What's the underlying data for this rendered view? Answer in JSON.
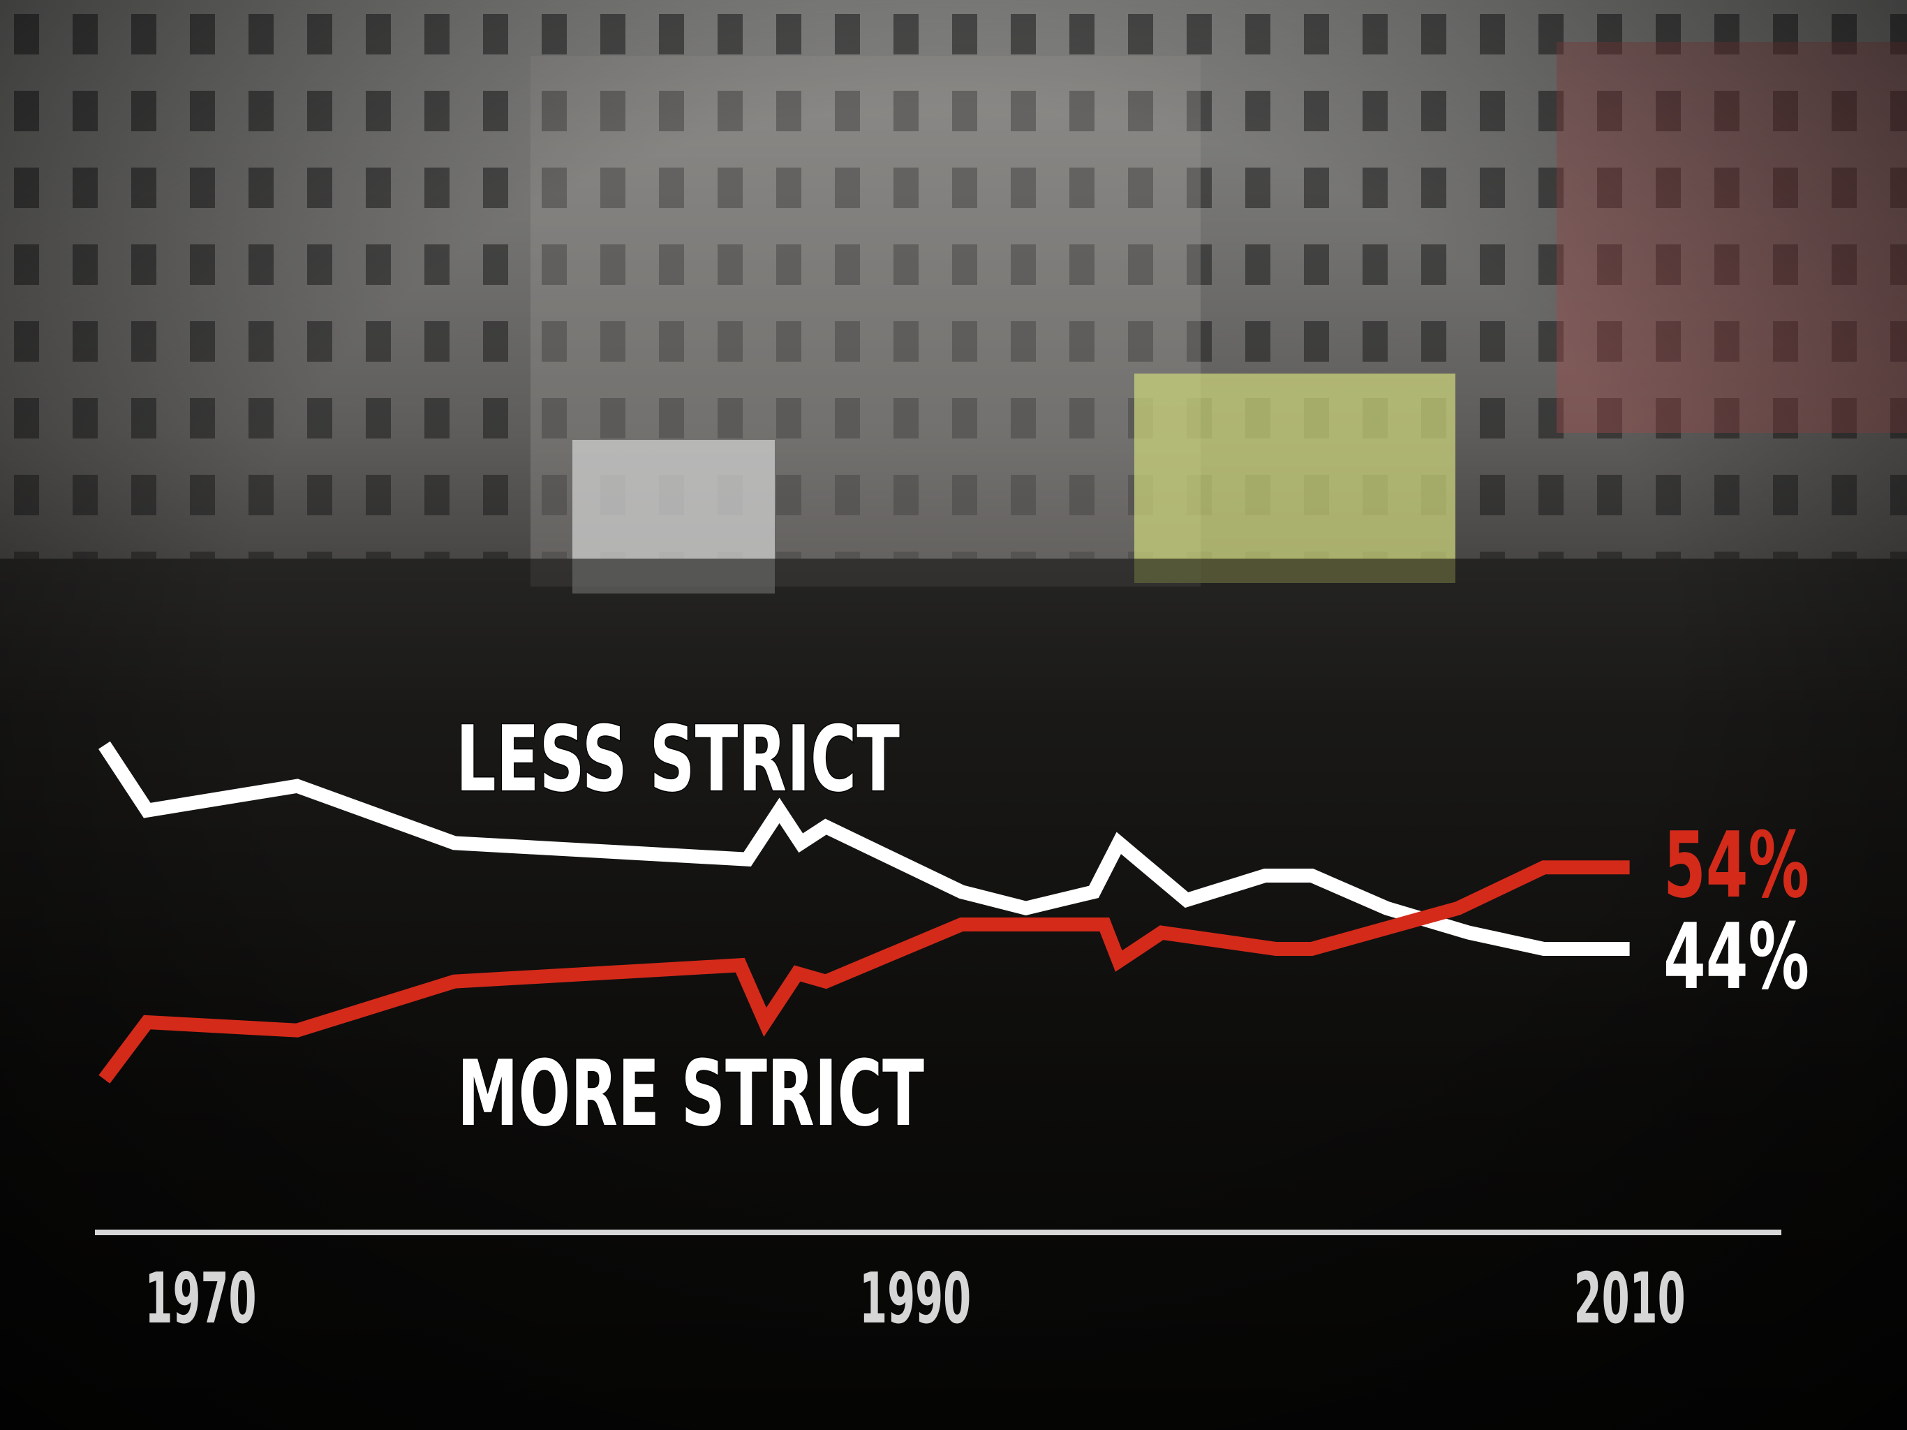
{
  "chart_data": {
    "type": "line",
    "xlim": [
      1967,
      2012
    ],
    "xticks": [
      1970,
      1990,
      2010
    ],
    "ylim": [
      20,
      80
    ],
    "series": [
      {
        "name": "LESS STRICT",
        "color": "#ffffff",
        "x": [
          1967.3,
          1968.5,
          1972.7,
          1977.1,
          1985.3,
          1986.2,
          1986.8,
          1987.5,
          1991.3,
          1993.1,
          1995.0,
          1995.7,
          1997.6,
          1999.8,
          2001.1,
          2003.2,
          2005.5,
          2007.6,
          2010
        ],
        "values": [
          69,
          61,
          64,
          57,
          55,
          61,
          57,
          59,
          51,
          49,
          51,
          57,
          50,
          53,
          53,
          49,
          46,
          44,
          44
        ],
        "value_labels": [
          null,
          null,
          null,
          null,
          null,
          null,
          null,
          null,
          null,
          null,
          null,
          null,
          null,
          null,
          null,
          null,
          null,
          null,
          "44%"
        ]
      },
      {
        "name": "MORE STRICT",
        "color": "#d42a1a",
        "x": [
          1967.3,
          1968.5,
          1972.7,
          1977.1,
          1985.1,
          1985.8,
          1986.7,
          1987.5,
          1991.3,
          1995.3,
          1995.7,
          1996.9,
          2000.1,
          2001.1,
          2005.2,
          2007.6,
          2010
        ],
        "values": [
          28,
          35,
          34,
          40,
          42,
          35,
          41,
          40,
          47,
          47,
          42.5,
          46,
          44,
          44,
          49,
          54,
          54
        ],
        "value_labels": [
          null,
          null,
          null,
          null,
          null,
          null,
          null,
          null,
          null,
          null,
          null,
          null,
          null,
          null,
          null,
          null,
          "54%"
        ]
      }
    ]
  }
}
